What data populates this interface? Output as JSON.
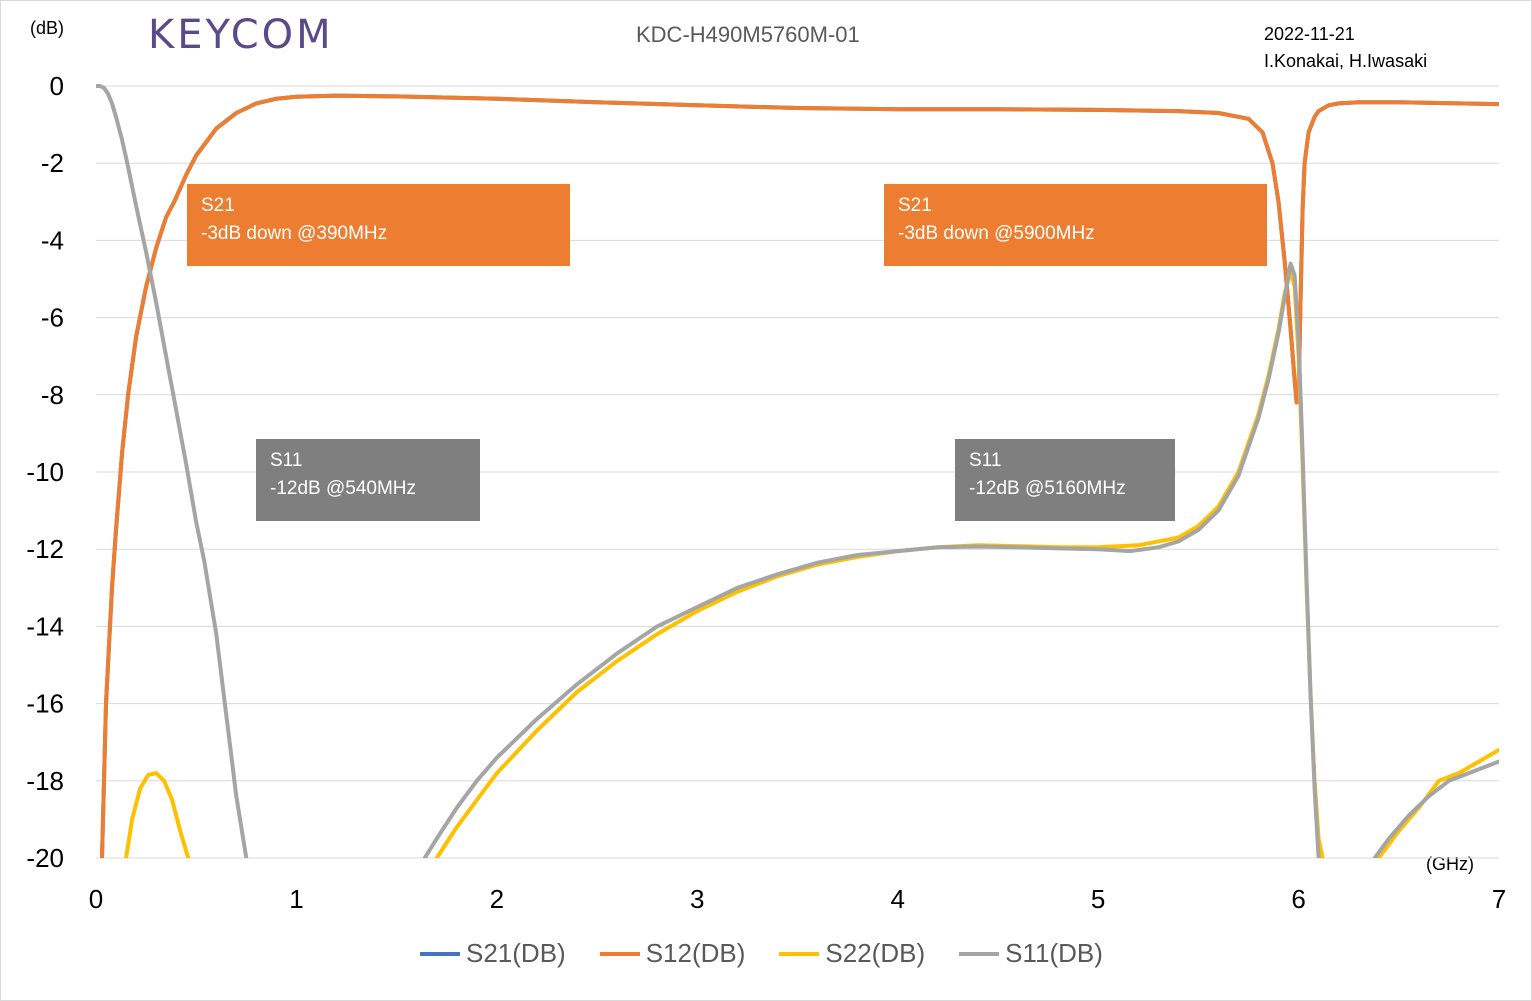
{
  "logo_text": "KEYCOM",
  "header": {
    "title": "KDC-H490M5760M-01",
    "date": "2022-11-21",
    "authors": "I.Konakai, H.Iwasaki"
  },
  "annotations": [
    {
      "line1": "S21",
      "line2": "-3dB down @390MHz",
      "color": "#ed7d31"
    },
    {
      "line1": "S21",
      "line2": "-3dB down @5900MHz",
      "color": "#ed7d31"
    },
    {
      "line1": "S11",
      "line2": "-12dB  @540MHz",
      "color": "#7f7f7f"
    },
    {
      "line1": "S11",
      "line2": "-12dB  @5160MHz",
      "color": "#7f7f7f"
    }
  ],
  "chart_data": {
    "type": "line",
    "title": "KDC-H490M5760M-01",
    "xlabel": "(GHz)",
    "ylabel": "(dB)",
    "xlim": [
      0,
      7
    ],
    "ylim": [
      -20,
      0
    ],
    "xticks": [
      "0",
      "1",
      "2",
      "3",
      "4",
      "5",
      "6",
      "7"
    ],
    "yticks": [
      "0",
      "-2",
      "-4",
      "-6",
      "-8",
      "-10",
      "-12",
      "-14",
      "-16",
      "-18",
      "-20"
    ],
    "grid": true,
    "legend_position": "bottom",
    "series": [
      {
        "name": "S21(DB)",
        "color": "#4472c4",
        "x": [
          0.03,
          0.05,
          0.08,
          0.1,
          0.13,
          0.16,
          0.2,
          0.25,
          0.3,
          0.35,
          0.39,
          0.45,
          0.5,
          0.6,
          0.7,
          0.8,
          0.9,
          1.0,
          1.2,
          1.5,
          2.0,
          2.5,
          3.0,
          3.5,
          4.0,
          4.5,
          5.0,
          5.4,
          5.6,
          5.75,
          5.82,
          5.87,
          5.9,
          5.93,
          5.96,
          5.98,
          5.99,
          6.0,
          6.01,
          6.02,
          6.03,
          6.05,
          6.08,
          6.1,
          6.15,
          6.2,
          6.3,
          6.5,
          7.0
        ],
        "y": [
          -20,
          -16,
          -13,
          -11.5,
          -9.5,
          -8,
          -6.5,
          -5.2,
          -4.2,
          -3.4,
          -3,
          -2.3,
          -1.8,
          -1.1,
          -0.7,
          -0.45,
          -0.33,
          -0.28,
          -0.25,
          -0.27,
          -0.33,
          -0.42,
          -0.5,
          -0.57,
          -0.6,
          -0.6,
          -0.62,
          -0.65,
          -0.7,
          -0.85,
          -1.2,
          -2.0,
          -3.0,
          -4.5,
          -6.3,
          -7.6,
          -8.2,
          -8.0,
          -5.5,
          -3.2,
          -2.0,
          -1.2,
          -0.8,
          -0.65,
          -0.5,
          -0.45,
          -0.42,
          -0.42,
          -0.47
        ]
      },
      {
        "name": "S12(DB)",
        "color": "#ed7d31",
        "x": [
          0.03,
          0.05,
          0.08,
          0.1,
          0.13,
          0.16,
          0.2,
          0.25,
          0.3,
          0.35,
          0.39,
          0.45,
          0.5,
          0.6,
          0.7,
          0.8,
          0.9,
          1.0,
          1.2,
          1.5,
          2.0,
          2.5,
          3.0,
          3.5,
          4.0,
          4.5,
          5.0,
          5.4,
          5.6,
          5.75,
          5.82,
          5.87,
          5.9,
          5.93,
          5.96,
          5.98,
          5.99,
          6.0,
          6.01,
          6.02,
          6.03,
          6.05,
          6.08,
          6.1,
          6.15,
          6.2,
          6.3,
          6.5,
          7.0
        ],
        "y": [
          -20,
          -16,
          -13,
          -11.5,
          -9.5,
          -8,
          -6.5,
          -5.2,
          -4.2,
          -3.4,
          -3,
          -2.3,
          -1.8,
          -1.1,
          -0.7,
          -0.45,
          -0.33,
          -0.28,
          -0.25,
          -0.27,
          -0.33,
          -0.42,
          -0.5,
          -0.57,
          -0.6,
          -0.6,
          -0.62,
          -0.65,
          -0.7,
          -0.85,
          -1.2,
          -2.0,
          -3.0,
          -4.5,
          -6.3,
          -7.6,
          -8.2,
          -8.0,
          -5.5,
          -3.2,
          -2.0,
          -1.2,
          -0.8,
          -0.65,
          -0.5,
          -0.45,
          -0.42,
          -0.42,
          -0.47
        ]
      },
      {
        "name": "S22(DB)",
        "color": "#ffc000",
        "segments": [
          {
            "x": [
              0.15,
              0.18,
              0.22,
              0.26,
              0.3,
              0.34,
              0.38,
              0.42,
              0.46
            ],
            "y": [
              -20,
              -19.0,
              -18.2,
              -17.85,
              -17.8,
              -18.0,
              -18.5,
              -19.3,
              -20
            ]
          },
          {
            "x": [
              1.7,
              1.8,
              1.9,
              2.0,
              2.2,
              2.4,
              2.6,
              2.8,
              3.0,
              3.2,
              3.4,
              3.6,
              3.8,
              4.0,
              4.2,
              4.4,
              4.6,
              4.8,
              5.0,
              5.2,
              5.4,
              5.5,
              5.6,
              5.7,
              5.8,
              5.85,
              5.9,
              5.93,
              5.96,
              5.98,
              6.0,
              6.02,
              6.04,
              6.06,
              6.08,
              6.1,
              6.12
            ],
            "y": [
              -20,
              -19.2,
              -18.5,
              -17.8,
              -16.7,
              -15.7,
              -14.9,
              -14.2,
              -13.6,
              -13.1,
              -12.7,
              -12.4,
              -12.2,
              -12.05,
              -11.95,
              -11.9,
              -11.92,
              -11.95,
              -11.95,
              -11.9,
              -11.7,
              -11.4,
              -10.9,
              -10.0,
              -8.5,
              -7.5,
              -6.3,
              -5.4,
              -4.8,
              -5.2,
              -7.0,
              -9.8,
              -13.0,
              -15.8,
              -18.0,
              -19.5,
              -20
            ]
          },
          {
            "x": [
              6.4,
              6.5,
              6.6,
              6.7,
              6.8,
              6.9,
              7.0
            ],
            "y": [
              -20,
              -19.3,
              -18.7,
              -18.0,
              -17.8,
              -17.5,
              -17.2
            ]
          }
        ]
      },
      {
        "name": "S11(DB)",
        "color": "#a5a5a5",
        "segments": [
          {
            "x": [
              0.0,
              0.02,
              0.04,
              0.06,
              0.08,
              0.1,
              0.13,
              0.16,
              0.2,
              0.25,
              0.3,
              0.35,
              0.4,
              0.45,
              0.5,
              0.54,
              0.6,
              0.65,
              0.7,
              0.75
            ],
            "y": [
              0,
              0,
              -0.05,
              -0.2,
              -0.45,
              -0.8,
              -1.4,
              -2.1,
              -3.1,
              -4.3,
              -5.6,
              -7.0,
              -8.4,
              -9.8,
              -11.3,
              -12.3,
              -14.2,
              -16.3,
              -18.4,
              -20
            ]
          },
          {
            "x": [
              1.64,
              1.7,
              1.8,
              1.9,
              2.0,
              2.2,
              2.4,
              2.6,
              2.8,
              3.0,
              3.2,
              3.4,
              3.6,
              3.8,
              4.0,
              4.2,
              4.4,
              4.6,
              4.8,
              5.0,
              5.16,
              5.3,
              5.4,
              5.5,
              5.6,
              5.7,
              5.8,
              5.85,
              5.9,
              5.93,
              5.96,
              5.98,
              6.0,
              6.02,
              6.04,
              6.06,
              6.08,
              6.1
            ],
            "y": [
              -20,
              -19.5,
              -18.7,
              -18.0,
              -17.4,
              -16.4,
              -15.5,
              -14.7,
              -14.0,
              -13.5,
              -13.0,
              -12.65,
              -12.35,
              -12.15,
              -12.05,
              -11.95,
              -11.93,
              -11.95,
              -11.98,
              -12.0,
              -12.05,
              -11.95,
              -11.8,
              -11.5,
              -11.0,
              -10.1,
              -8.6,
              -7.6,
              -6.4,
              -5.5,
              -4.6,
              -4.9,
              -6.6,
              -9.5,
              -12.8,
              -15.8,
              -18.2,
              -20
            ]
          },
          {
            "x": [
              6.38,
              6.45,
              6.55,
              6.65,
              6.75,
              6.85,
              6.95,
              7.0
            ],
            "y": [
              -20,
              -19.5,
              -18.9,
              -18.4,
              -18.0,
              -17.8,
              -17.6,
              -17.5
            ]
          }
        ]
      }
    ]
  }
}
